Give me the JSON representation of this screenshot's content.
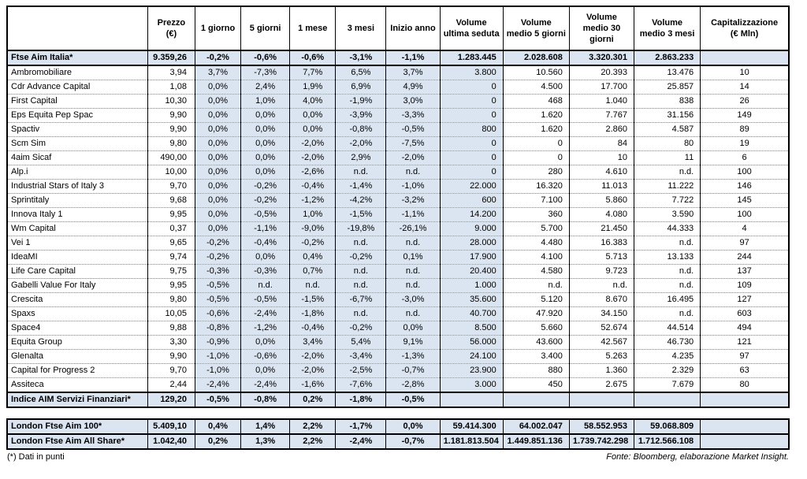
{
  "colors": {
    "highlight": "#dbe5f1"
  },
  "chart_data": {
    "type": "table",
    "columns": [
      "",
      "Prezzo\n(€)",
      "1 giorno",
      "5 giorni",
      "1 mese",
      "3 mesi",
      "Inizio anno",
      "Volume\nultima seduta",
      "Volume\nmedio 5 giorni",
      "Volume\nmedio 30\ngiorni",
      "Volume\nmedio 3 mesi",
      "Capitalizzazione\n(€ Mln)"
    ],
    "rows": [
      {
        "name": "Ftse Aim Italia*",
        "bold": true,
        "values": [
          "9.359,26",
          "-0,2%",
          "-0,6%",
          "-0,6%",
          "-3,1%",
          "-1,1%",
          "1.283.445",
          "2.028.608",
          "3.320.301",
          "2.863.233",
          ""
        ]
      },
      {
        "name": "Ambromobiliare",
        "bold": false,
        "values": [
          "3,94",
          "3,7%",
          "-7,3%",
          "7,7%",
          "6,5%",
          "3,7%",
          "3.800",
          "10.560",
          "20.393",
          "13.476",
          "10"
        ]
      },
      {
        "name": "Cdr Advance Capital",
        "bold": false,
        "values": [
          "1,08",
          "0,0%",
          "2,4%",
          "1,9%",
          "6,9%",
          "4,9%",
          "0",
          "4.500",
          "17.700",
          "25.857",
          "14"
        ]
      },
      {
        "name": "First Capital",
        "bold": false,
        "values": [
          "10,30",
          "0,0%",
          "1,0%",
          "4,0%",
          "-1,9%",
          "3,0%",
          "0",
          "468",
          "1.040",
          "838",
          "26"
        ]
      },
      {
        "name": "Eps Equita Pep Spac",
        "bold": false,
        "values": [
          "9,90",
          "0,0%",
          "0,0%",
          "0,0%",
          "-3,9%",
          "-3,3%",
          "0",
          "1.620",
          "7.767",
          "31.156",
          "149"
        ]
      },
      {
        "name": "Spactiv",
        "bold": false,
        "values": [
          "9,90",
          "0,0%",
          "0,0%",
          "0,0%",
          "-0,8%",
          "-0,5%",
          "800",
          "1.620",
          "2.860",
          "4.587",
          "89"
        ]
      },
      {
        "name": "Scm Sim",
        "bold": false,
        "values": [
          "9,80",
          "0,0%",
          "0,0%",
          "-2,0%",
          "-2,0%",
          "-7,5%",
          "0",
          "0",
          "84",
          "80",
          "19"
        ]
      },
      {
        "name": "4aim Sicaf",
        "bold": false,
        "values": [
          "490,00",
          "0,0%",
          "0,0%",
          "-2,0%",
          "2,9%",
          "-2,0%",
          "0",
          "0",
          "10",
          "11",
          "6"
        ]
      },
      {
        "name": "Alp.i",
        "bold": false,
        "values": [
          "10,00",
          "0,0%",
          "0,0%",
          "-2,6%",
          "n.d.",
          "n.d.",
          "0",
          "280",
          "4.610",
          "n.d.",
          "100"
        ]
      },
      {
        "name": "Industrial Stars of Italy 3",
        "bold": false,
        "values": [
          "9,70",
          "0,0%",
          "-0,2%",
          "-0,4%",
          "-1,4%",
          "-1,0%",
          "22.000",
          "16.320",
          "11.013",
          "11.222",
          "146"
        ]
      },
      {
        "name": "Sprintitaly",
        "bold": false,
        "values": [
          "9,68",
          "0,0%",
          "-0,2%",
          "-1,2%",
          "-4,2%",
          "-3,2%",
          "600",
          "7.100",
          "5.860",
          "7.722",
          "145"
        ]
      },
      {
        "name": "Innova Italy 1",
        "bold": false,
        "values": [
          "9,95",
          "0,0%",
          "-0,5%",
          "1,0%",
          "-1,5%",
          "-1,1%",
          "14.200",
          "360",
          "4.080",
          "3.590",
          "100"
        ]
      },
      {
        "name": "Wm Capital",
        "bold": false,
        "values": [
          "0,37",
          "0,0%",
          "-1,1%",
          "-9,0%",
          "-19,8%",
          "-26,1%",
          "9.000",
          "5.700",
          "21.450",
          "44.333",
          "4"
        ]
      },
      {
        "name": "Vei 1",
        "bold": false,
        "values": [
          "9,65",
          "-0,2%",
          "-0,4%",
          "-0,2%",
          "n.d.",
          "n.d.",
          "28.000",
          "4.480",
          "16.383",
          "n.d.",
          "97"
        ]
      },
      {
        "name": "IdeaMI",
        "bold": false,
        "values": [
          "9,74",
          "-0,2%",
          "0,0%",
          "0,4%",
          "-0,2%",
          "0,1%",
          "17.900",
          "4.100",
          "5.713",
          "13.133",
          "244"
        ]
      },
      {
        "name": "Life Care Capital",
        "bold": false,
        "values": [
          "9,75",
          "-0,3%",
          "-0,3%",
          "0,7%",
          "n.d.",
          "n.d.",
          "20.400",
          "4.580",
          "9.723",
          "n.d.",
          "137"
        ]
      },
      {
        "name": "Gabelli Value For Italy",
        "bold": false,
        "values": [
          "9,95",
          "-0,5%",
          "n.d.",
          "n.d.",
          "n.d.",
          "n.d.",
          "1.000",
          "n.d.",
          "n.d.",
          "n.d.",
          "109"
        ]
      },
      {
        "name": "Crescita",
        "bold": false,
        "values": [
          "9,80",
          "-0,5%",
          "-0,5%",
          "-1,5%",
          "-6,7%",
          "-3,0%",
          "35.600",
          "5.120",
          "8.670",
          "16.495",
          "127"
        ]
      },
      {
        "name": "Spaxs",
        "bold": false,
        "values": [
          "10,05",
          "-0,6%",
          "-2,4%",
          "-1,8%",
          "n.d.",
          "n.d.",
          "40.700",
          "47.920",
          "34.150",
          "n.d.",
          "603"
        ]
      },
      {
        "name": "Space4",
        "bold": false,
        "values": [
          "9,88",
          "-0,8%",
          "-1,2%",
          "-0,4%",
          "-0,2%",
          "0,0%",
          "8.500",
          "5.660",
          "52.674",
          "44.514",
          "494"
        ]
      },
      {
        "name": "Equita Group",
        "bold": false,
        "values": [
          "3,30",
          "-0,9%",
          "0,0%",
          "3,4%",
          "5,4%",
          "9,1%",
          "56.000",
          "43.600",
          "42.567",
          "46.730",
          "121"
        ]
      },
      {
        "name": "Glenalta",
        "bold": false,
        "values": [
          "9,90",
          "-1,0%",
          "-0,6%",
          "-2,0%",
          "-3,4%",
          "-1,3%",
          "24.100",
          "3.400",
          "5.263",
          "4.235",
          "97"
        ]
      },
      {
        "name": "Capital for Progress 2",
        "bold": false,
        "values": [
          "9,70",
          "-1,0%",
          "0,0%",
          "-2,0%",
          "-2,5%",
          "-0,7%",
          "23.900",
          "880",
          "1.360",
          "2.329",
          "63"
        ]
      },
      {
        "name": "Assiteca",
        "bold": false,
        "values": [
          "2,44",
          "-2,4%",
          "-2,4%",
          "-1,6%",
          "-7,6%",
          "-2,8%",
          "3.000",
          "450",
          "2.675",
          "7.679",
          "80"
        ]
      },
      {
        "name": "Indice AIM Servizi Finanziari*",
        "bold": true,
        "values": [
          "129,20",
          "-0,5%",
          "-0,8%",
          "0,2%",
          "-1,8%",
          "-0,5%",
          "",
          "",
          "",
          "",
          ""
        ]
      }
    ],
    "bottom_rows": [
      {
        "name": "London Ftse Aim 100*",
        "bold": true,
        "values": [
          "5.409,10",
          "0,4%",
          "1,4%",
          "2,2%",
          "-1,7%",
          "0,0%",
          "59.414.300",
          "64.002.047",
          "58.552.953",
          "59.068.809",
          ""
        ]
      },
      {
        "name": "London Ftse Aim All Share*",
        "bold": true,
        "values": [
          "1.042,40",
          "0,2%",
          "1,3%",
          "2,2%",
          "-2,4%",
          "-0,7%",
          "1.181.813.504",
          "1.449.851.136",
          "1.739.742.298",
          "1.712.566.108",
          ""
        ]
      }
    ]
  },
  "footer": {
    "left": "(*) Dati in punti",
    "right": "Fonte: Bloomberg, elaborazione Market Insight."
  }
}
